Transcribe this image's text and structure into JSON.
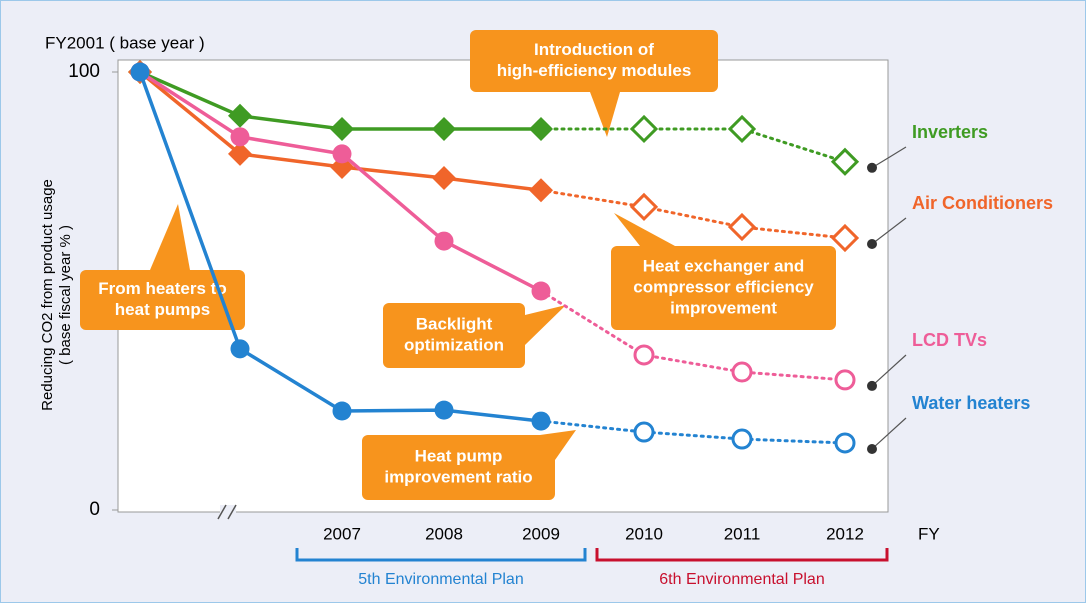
{
  "chart_data": {
    "type": "line",
    "base_label": "FY2001 ( base year )",
    "ylabel": [
      "Reducing CO2 from product usage",
      "( base fiscal year % )"
    ],
    "xlabel": "FY",
    "categories": [
      null,
      null,
      "2007",
      "2008",
      "2009",
      "2010",
      "2011",
      "2012"
    ],
    "ylim": [
      0,
      100
    ],
    "yticks": [
      0,
      100
    ],
    "grid": false,
    "series": [
      {
        "name": "Inverters",
        "color": "#3f9b23",
        "marker": "diamond",
        "values": [
          100,
          90,
          87,
          87,
          87,
          87,
          87,
          79.5
        ]
      },
      {
        "name": "Air Conditioners",
        "color": "#f0652a",
        "marker": "diamond",
        "values": [
          100,
          81.3,
          78.3,
          75.8,
          73,
          69.2,
          64.6,
          62.1
        ]
      },
      {
        "name": "LCD TVs",
        "color": "#ee5d98",
        "marker": "circle",
        "values": [
          100,
          85.2,
          81.3,
          61.4,
          50,
          35.4,
          31.5,
          29.7
        ]
      },
      {
        "name": "Water heaters",
        "color": "#2383d1",
        "marker": "circle",
        "values": [
          100,
          36.8,
          22.6,
          22.8,
          20.3,
          17.8,
          16.2,
          15.3
        ]
      }
    ],
    "annotations": [
      {
        "lines": [
          "Introduction of",
          "high-efficiency modules"
        ]
      },
      {
        "lines": [
          "From heaters to",
          "heat pumps"
        ]
      },
      {
        "lines": [
          "Heat exchanger and",
          "compressor efficiency",
          "improvement"
        ]
      },
      {
        "lines": [
          "Backlight",
          "optimization"
        ]
      },
      {
        "lines": [
          "Heat pump",
          "improvement ratio"
        ]
      }
    ],
    "plans": [
      {
        "name": "5th Environmental Plan",
        "color": "#2383d1"
      },
      {
        "name": "6th Environmental Plan",
        "color": "#c8102e"
      }
    ]
  }
}
